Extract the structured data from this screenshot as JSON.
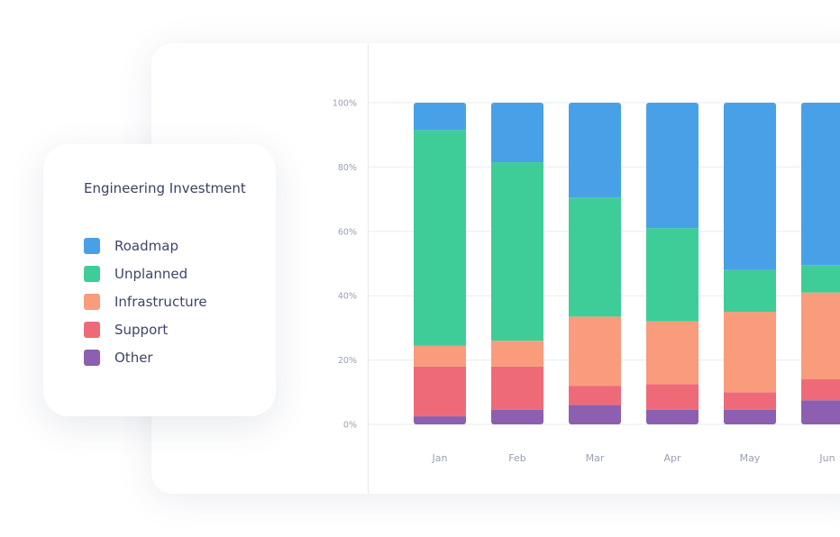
{
  "colors": {
    "Roadmap": "#48a1e6",
    "Unplanned": "#3ecd98",
    "Infrastructure": "#f89c7c",
    "Support": "#ef6a79",
    "Other": "#8c5fb0",
    "axis_text": "#9aa0b4",
    "grid": "#e9ebf1"
  },
  "legend": {
    "title": "Engineering Investment",
    "items": [
      {
        "label": "Roadmap",
        "color": "#48a1e6"
      },
      {
        "label": "Unplanned",
        "color": "#3ecd98"
      },
      {
        "label": "Infrastructure",
        "color": "#f89c7c"
      },
      {
        "label": "Support",
        "color": "#ef6a79"
      },
      {
        "label": "Other",
        "color": "#8c5fb0"
      }
    ]
  },
  "chart_data": {
    "type": "bar",
    "stacked": true,
    "title": "Engineering Investment",
    "categories": [
      "Jan",
      "Feb",
      "Mar",
      "Apr",
      "May",
      "Jun"
    ],
    "ylim": [
      0,
      100
    ],
    "yticks": [
      "0%",
      "20%",
      "40%",
      "60%",
      "80%",
      "100%"
    ],
    "grid": true,
    "legend_position": "left",
    "series": [
      {
        "name": "Other",
        "values": [
          2.5,
          4.5,
          6,
          4.5,
          4.5,
          7.5
        ]
      },
      {
        "name": "Support",
        "values": [
          15.5,
          13.5,
          6,
          8,
          5.5,
          6.5
        ]
      },
      {
        "name": "Infrastructure",
        "values": [
          6.5,
          8,
          21.5,
          19.5,
          25,
          27
        ]
      },
      {
        "name": "Unplanned",
        "values": [
          67,
          55.5,
          37,
          29,
          13,
          8.5
        ]
      },
      {
        "name": "Roadmap",
        "values": [
          8.5,
          18.5,
          29.5,
          39,
          52,
          50.5
        ]
      }
    ]
  }
}
